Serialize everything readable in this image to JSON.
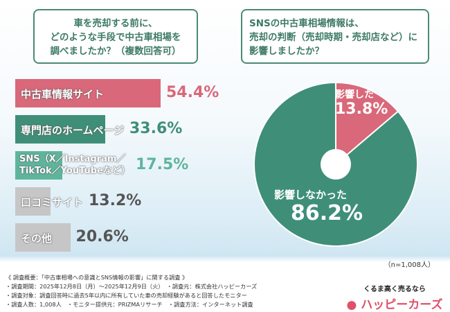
{
  "questions": {
    "q1": [
      "車を売却する前に、",
      "どのような手段で中古車相場を",
      "調べましたか？（複数回答可）"
    ],
    "q2": [
      "SNSの中古車相場情報は、",
      "売却の判断（売却時期・売却店など）に",
      "影響しましたか？"
    ]
  },
  "chart_data": [
    {
      "type": "bar",
      "orientation": "horizontal",
      "unit": "%",
      "categories": [
        "中古車情報サイト",
        "専門店のホームページ",
        "SNS（X／Instagram／TikTok／YouTubeなど）",
        "口コミサイト",
        "その他"
      ],
      "category_lines": [
        [
          "中古車情報サイト"
        ],
        [
          "専門店のホームページ"
        ],
        [
          "SNS（X／Instagram／",
          "TikTok／YouTubeなど）"
        ],
        [
          "口コミサイト"
        ],
        [
          "その他"
        ]
      ],
      "values": [
        54.4,
        33.6,
        17.5,
        13.2,
        20.6
      ],
      "value_labels": [
        "54.4%",
        "33.6%",
        "17.5%",
        "13.2%",
        "20.6%"
      ],
      "colors": [
        "#d9687a",
        "#3f8f78",
        "#5fb59c",
        "#c6c6c6",
        "#c6c6c6"
      ],
      "value_colors": [
        "#d9687a",
        "#3f8f78",
        "#5fb59c",
        "#555555",
        "#555555"
      ]
    },
    {
      "type": "pie",
      "style": "donut",
      "categories": [
        "影響した",
        "影響しなかった"
      ],
      "values": [
        13.8,
        86.2
      ],
      "value_labels": [
        "13.8%",
        "86.2%"
      ],
      "colors": [
        "#d9687a",
        "#3f8f78"
      ]
    }
  ],
  "sample": "（n=1,008人）",
  "footer": [
    "《 調査概要：「中古車相場への意識とSNS情報の影響」に関する調査 》",
    "・調査期間：2025年12月8日（月）～2025年12月9日（火）　・調査元：株式会社ハッピーカーズ",
    "・調査対象：調査回答時に過去5年以内に所有していた車の売却経験があると回答したモニター",
    "・調査人数：1,008人　・モニター提供元：PRIZMAリサーチ　・調査方法：インターネット調査"
  ],
  "logo": {
    "tagline": "くるま高く売るなら",
    "name": "ハッピーカーズ"
  }
}
